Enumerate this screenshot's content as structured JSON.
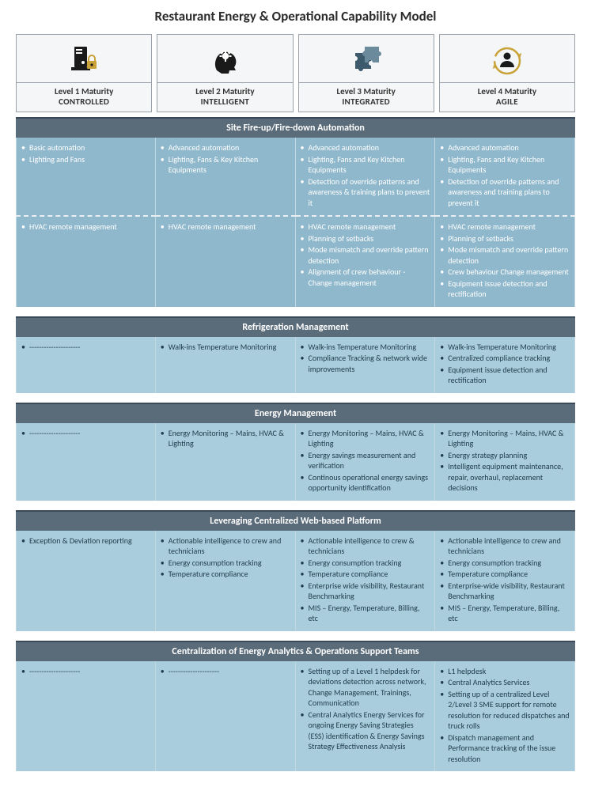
{
  "title": "Restaurant Energy & Operational Capability Model",
  "colors": {
    "header_bg": "#5a6b7a",
    "header_border": "#3a4a58",
    "cell_primary_bg": "#8fb8cc",
    "cell_alt_bg": "#a9cddc",
    "cell_border": "#c3d7e1",
    "card_border": "#9aa1a8",
    "card_bg": "#f5f6f7"
  },
  "levels": [
    {
      "icon": "server-lock",
      "line1": "Level 1 Maturity",
      "line2": "CONTROLLED"
    },
    {
      "icon": "head-gear",
      "line1": "Level 2 Maturity",
      "line2": "INTELLIGENT"
    },
    {
      "icon": "puzzle",
      "line1": "Level 3 Maturity",
      "line2": "INTEGRATED"
    },
    {
      "icon": "user-cycle",
      "line1": "Level 4 Maturity",
      "line2": "AGILE"
    }
  ],
  "sections": [
    {
      "title": "Site Fire-up/Fire-down Automation",
      "rows": [
        {
          "cells": [
            [
              "Basic automation",
              "Lighting and Fans"
            ],
            [
              "Advanced automation",
              "Lighting, Fans & Key Kitchen Equipments"
            ],
            [
              "Advanced automation",
              "Lighting, Fans and Key Kitchen Equipments",
              "Detection of override patterns and awareness & training plans to prevent it"
            ],
            [
              "Advanced automation",
              "Lighting, Fans and Key Kitchen Equipments",
              "Detection of override patterns and awareness and training plans to prevent it"
            ]
          ]
        },
        {
          "dashedAbove": true,
          "cells": [
            [
              "HVAC remote management"
            ],
            [
              "HVAC remote management"
            ],
            [
              "HVAC remote management",
              "Planning of setbacks",
              "Mode mismatch and override pattern detection",
              "Alignment of crew behaviour - Change management"
            ],
            [
              "HVAC remote management",
              "Planning of setbacks",
              "Mode mismatch and override pattern detection",
              "Crew behaviour Change management",
              "Equipment issue detection and rectification"
            ]
          ]
        }
      ]
    },
    {
      "title": "Refrigeration Management",
      "rows": [
        {
          "alt": true,
          "cells": [
            [
              "---------------------"
            ],
            [
              "Walk-ins Temperature Monitoring"
            ],
            [
              "Walk-ins Temperature Monitoring",
              "Compliance Tracking & network wide improvements"
            ],
            [
              "Walk-ins Temperature Monitoring",
              "Centralized compliance tracking",
              "Equipment issue detection and rectification"
            ]
          ]
        }
      ]
    },
    {
      "title": "Energy Management",
      "rows": [
        {
          "alt": true,
          "cells": [
            [
              "---------------------"
            ],
            [
              "Energy Monitoring – Mains, HVAC & Lighting"
            ],
            [
              "Energy Monitoring – Mains, HVAC & Lighting",
              "Energy savings measurement and verification",
              "Continous operational energy savings opportunity identification"
            ],
            [
              "Energy Monitoring – Mains, HVAC & Lighting",
              "Energy strategy planning",
              "Intelligent equipment maintenance, repair, overhaul, replacement decisions"
            ]
          ]
        }
      ]
    },
    {
      "title": "Leveraging Centralized Web-based Platform",
      "rows": [
        {
          "alt": true,
          "cells": [
            [
              "Exception & Deviation reporting"
            ],
            [
              "Actionable intelligence to crew and technicians",
              "Energy consumption tracking",
              "Temperature compliance"
            ],
            [
              "Actionable intelligence to crew & technicians",
              "Energy consumption tracking",
              "Temperature compliance",
              "Enterprise wide visibility, Restaurant Benchmarking",
              "MIS – Energy, Temperature, Billing, etc"
            ],
            [
              "Actionable intelligence to crew and technicians",
              "Energy consumption tracking",
              "Temperature compliance",
              "Enterprise-wide visibility, Restaurant Benchmarking",
              "MIS – Energy, Temperature, Billing, etc"
            ]
          ]
        }
      ]
    },
    {
      "title": "Centralization of Energy Analytics & Operations Support Teams",
      "rows": [
        {
          "alt": true,
          "cells": [
            [
              "---------------------"
            ],
            [
              "---------------------"
            ],
            [
              "Setting up of a Level 1 helpdesk for deviations detection across network, Change Management, Trainings, Communication",
              "Central Analytics Energy Services for ongoing Energy Saving Strategies (ESS) identification & Energy Savings Strategy Effectiveness Analysis"
            ],
            [
              "L1 helpdesk",
              "Central Analytics Services",
              "Setting up of a centralized Level 2/Level 3 SME support for remote resolution for reduced dispatches and truck rolls",
              "Dispatch management and Performance tracking of the issue resolution"
            ]
          ]
        }
      ]
    }
  ]
}
